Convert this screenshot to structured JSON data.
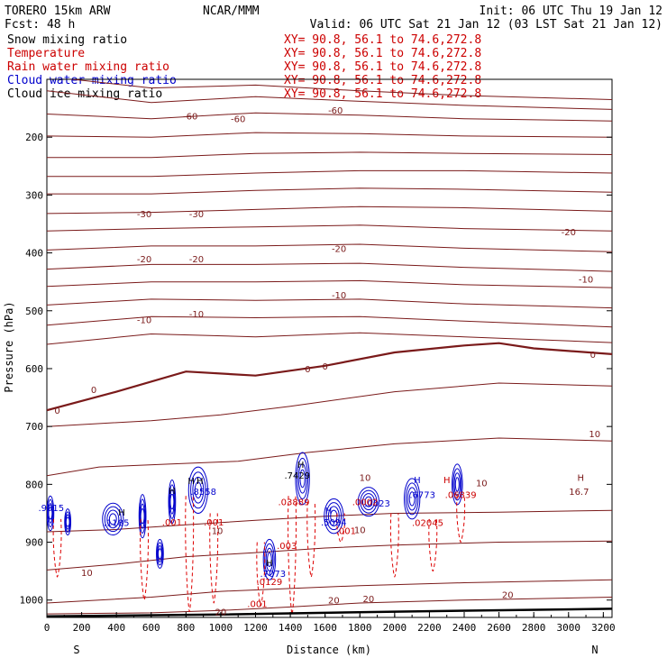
{
  "header": {
    "model": "TORERO  15km ARW",
    "center": "NCAR/MMM",
    "init": "Init: 06 UTC Thu 19 Jan 12",
    "fcst": "Fcst:   48 h",
    "valid": "Valid: 06 UTC Sat 21 Jan 12 (03 LST Sat 21 Jan 12)"
  },
  "fields": [
    {
      "name": "Snow mixing ratio",
      "color": "#000000",
      "xy": "XY=  90.8, 56.1 to  74.6,272.8"
    },
    {
      "name": "Temperature",
      "color": "#cc0000",
      "xy": "XY=  90.8, 56.1 to  74.6,272.8"
    },
    {
      "name": "Rain water mixing ratio",
      "color": "#cc0000",
      "xy": "XY=  90.8, 56.1 to  74.6,272.8"
    },
    {
      "name": "Cloud water mixing ratio",
      "color": "#0000cc",
      "xy": "XY=  90.8, 56.1 to  74.6,272.8"
    },
    {
      "name": "Cloud ice mixing ratio",
      "color": "#000000",
      "xy": "XY=  90.8, 56.1 to  74.6,272.8"
    }
  ],
  "chart_data": {
    "type": "cross-section contour",
    "xlabel": "Distance (km)",
    "ylabel": "Pressure (hPa)",
    "xlim": [
      0,
      3250
    ],
    "ylim": [
      1030,
      100
    ],
    "x_ticks": [
      0,
      200,
      400,
      600,
      800,
      1000,
      1200,
      1400,
      1600,
      1800,
      2000,
      2200,
      2400,
      2600,
      2800,
      3000,
      3200
    ],
    "y_ticks": [
      200,
      300,
      400,
      500,
      600,
      700,
      800,
      900,
      1000
    ],
    "left_end": "S",
    "right_end": "N",
    "colors": {
      "temperature": "#7a1a1a",
      "rain": "#dd0000",
      "cloud": "#0000cc",
      "snow": "#000000",
      "ground": "#000000"
    },
    "isotherms": [
      {
        "label": "-60",
        "points": [
          [
            0,
            95
          ],
          [
            600,
            115
          ],
          [
            1200,
            110
          ],
          [
            1800,
            120
          ],
          [
            2400,
            128
          ],
          [
            3250,
            135
          ]
        ]
      },
      {
        "label": "",
        "points": [
          [
            0,
            120
          ],
          [
            600,
            140
          ],
          [
            1200,
            130
          ],
          [
            1800,
            138
          ],
          [
            2400,
            145
          ],
          [
            3250,
            152
          ]
        ]
      },
      {
        "label": "-60",
        "points": [
          [
            0,
            160
          ],
          [
            600,
            168
          ],
          [
            1200,
            158
          ],
          [
            1800,
            162
          ],
          [
            2400,
            168
          ],
          [
            3250,
            172
          ]
        ]
      },
      {
        "label": "",
        "points": [
          [
            0,
            198
          ],
          [
            600,
            200
          ],
          [
            1200,
            192
          ],
          [
            1800,
            194
          ],
          [
            2400,
            198
          ],
          [
            3250,
            200
          ]
        ]
      },
      {
        "label": "",
        "points": [
          [
            0,
            235
          ],
          [
            600,
            235
          ],
          [
            1200,
            228
          ],
          [
            1800,
            226
          ],
          [
            2400,
            228
          ],
          [
            3250,
            230
          ]
        ]
      },
      {
        "label": "",
        "points": [
          [
            0,
            268
          ],
          [
            600,
            268
          ],
          [
            1200,
            262
          ],
          [
            1800,
            258
          ],
          [
            2400,
            258
          ],
          [
            3250,
            262
          ]
        ]
      },
      {
        "label": "",
        "points": [
          [
            0,
            298
          ],
          [
            600,
            298
          ],
          [
            1200,
            292
          ],
          [
            1800,
            288
          ],
          [
            2400,
            290
          ],
          [
            3250,
            295
          ]
        ]
      },
      {
        "label": "-30",
        "points": [
          [
            0,
            332
          ],
          [
            600,
            330
          ],
          [
            1200,
            325
          ],
          [
            1800,
            320
          ],
          [
            2400,
            322
          ],
          [
            3250,
            328
          ]
        ]
      },
      {
        "label": "",
        "points": [
          [
            0,
            362
          ],
          [
            600,
            358
          ],
          [
            1200,
            355
          ],
          [
            1800,
            352
          ],
          [
            2400,
            358
          ],
          [
            3250,
            362
          ]
        ]
      },
      {
        "label": "-20",
        "points": [
          [
            0,
            395
          ],
          [
            600,
            388
          ],
          [
            1200,
            388
          ],
          [
            1800,
            385
          ],
          [
            2400,
            392
          ],
          [
            3250,
            398
          ]
        ]
      },
      {
        "label": "-20",
        "points": [
          [
            0,
            428
          ],
          [
            600,
            420
          ],
          [
            1200,
            420
          ],
          [
            1800,
            418
          ],
          [
            2400,
            425
          ],
          [
            3250,
            432
          ]
        ]
      },
      {
        "label": "",
        "points": [
          [
            0,
            458
          ],
          [
            600,
            450
          ],
          [
            1200,
            450
          ],
          [
            1800,
            448
          ],
          [
            2400,
            455
          ],
          [
            3250,
            460
          ]
        ]
      },
      {
        "label": "-10",
        "points": [
          [
            0,
            490
          ],
          [
            600,
            480
          ],
          [
            1200,
            482
          ],
          [
            1800,
            480
          ],
          [
            2400,
            488
          ],
          [
            3250,
            495
          ]
        ]
      },
      {
        "label": "-10",
        "points": [
          [
            0,
            525
          ],
          [
            600,
            510
          ],
          [
            1200,
            512
          ],
          [
            1800,
            510
          ],
          [
            2400,
            518
          ],
          [
            3250,
            528
          ]
        ]
      },
      {
        "label": "",
        "points": [
          [
            0,
            558
          ],
          [
            600,
            540
          ],
          [
            1200,
            545
          ],
          [
            1800,
            538
          ],
          [
            2400,
            545
          ],
          [
            3250,
            555
          ]
        ]
      },
      {
        "label": "0",
        "bold": true,
        "points": [
          [
            0,
            672
          ],
          [
            400,
            640
          ],
          [
            800,
            605
          ],
          [
            1200,
            612
          ],
          [
            1600,
            595
          ],
          [
            2000,
            572
          ],
          [
            2400,
            560
          ],
          [
            2600,
            556
          ],
          [
            2800,
            565
          ],
          [
            3250,
            575
          ]
        ]
      },
      {
        "label": "",
        "points": [
          [
            0,
            700
          ],
          [
            600,
            690
          ],
          [
            1000,
            680
          ],
          [
            1400,
            665
          ],
          [
            2000,
            640
          ],
          [
            2600,
            625
          ],
          [
            3250,
            630
          ]
        ]
      },
      {
        "label": "10",
        "points": [
          [
            0,
            785
          ],
          [
            300,
            770
          ],
          [
            700,
            765
          ],
          [
            1100,
            760
          ],
          [
            1500,
            745
          ],
          [
            2000,
            730
          ],
          [
            2600,
            720
          ],
          [
            3250,
            725
          ]
        ]
      },
      {
        "label": "10",
        "points": [
          [
            0,
            882
          ],
          [
            400,
            878
          ],
          [
            800,
            870
          ],
          [
            1200,
            862
          ],
          [
            1600,
            855
          ],
          [
            2000,
            850
          ],
          [
            2600,
            848
          ],
          [
            3250,
            845
          ]
        ]
      },
      {
        "label": "10",
        "points": [
          [
            0,
            948
          ],
          [
            400,
            938
          ],
          [
            800,
            925
          ],
          [
            1200,
            918
          ],
          [
            1600,
            910
          ],
          [
            2000,
            905
          ],
          [
            2600,
            900
          ],
          [
            3250,
            898
          ]
        ]
      },
      {
        "label": "20",
        "points": [
          [
            0,
            1005
          ],
          [
            600,
            995
          ],
          [
            1000,
            985
          ],
          [
            1400,
            980
          ],
          [
            1800,
            975
          ],
          [
            2400,
            970
          ],
          [
            3250,
            965
          ]
        ]
      },
      {
        "label": "20",
        "points": [
          [
            0,
            1024
          ],
          [
            600,
            1022
          ],
          [
            1000,
            1018
          ],
          [
            1400,
            1012
          ],
          [
            1800,
            1005
          ],
          [
            2400,
            1000
          ],
          [
            3250,
            995
          ]
        ]
      }
    ],
    "surface": [
      [
        0,
        1028
      ],
      [
        1000,
        1025
      ],
      [
        2000,
        1020
      ],
      [
        3250,
        1015
      ]
    ],
    "cloud_contours": [
      {
        "x": 20,
        "p": 850,
        "w": 40,
        "h": 60
      },
      {
        "x": 120,
        "p": 865,
        "w": 35,
        "h": 45
      },
      {
        "x": 380,
        "p": 860,
        "w": 120,
        "h": 55
      },
      {
        "x": 550,
        "p": 855,
        "w": 40,
        "h": 75
      },
      {
        "x": 650,
        "p": 920,
        "w": 40,
        "h": 50
      },
      {
        "x": 720,
        "p": 830,
        "w": 40,
        "h": 75
      },
      {
        "x": 870,
        "p": 810,
        "w": 110,
        "h": 80
      },
      {
        "x": 1280,
        "p": 930,
        "w": 70,
        "h": 70
      },
      {
        "x": 1470,
        "p": 790,
        "w": 80,
        "h": 90
      },
      {
        "x": 1650,
        "p": 855,
        "w": 110,
        "h": 60
      },
      {
        "x": 1850,
        "p": 830,
        "w": 120,
        "h": 50
      },
      {
        "x": 2100,
        "p": 825,
        "w": 90,
        "h": 70
      },
      {
        "x": 2360,
        "p": 800,
        "w": 60,
        "h": 70
      }
    ],
    "rain_contours": [
      {
        "x": 60,
        "top": 860,
        "bottom": 960
      },
      {
        "x": 560,
        "top": 860,
        "bottom": 1000
      },
      {
        "x": 820,
        "top": 820,
        "bottom": 1020
      },
      {
        "x": 960,
        "top": 850,
        "bottom": 1005
      },
      {
        "x": 1230,
        "top": 900,
        "bottom": 1010
      },
      {
        "x": 1410,
        "top": 820,
        "bottom": 1025
      },
      {
        "x": 1520,
        "top": 830,
        "bottom": 960
      },
      {
        "x": 1690,
        "top": 850,
        "bottom": 900
      },
      {
        "x": 2000,
        "top": 850,
        "bottom": 960
      },
      {
        "x": 2220,
        "top": 860,
        "bottom": 950
      },
      {
        "x": 2380,
        "top": 820,
        "bottom": 900
      }
    ],
    "annotations": [
      {
        "text": "-60",
        "x": 825,
        "p": 163,
        "color": "#7a1a1a"
      },
      {
        "text": "-60",
        "x": 1100,
        "p": 168,
        "color": "#7a1a1a"
      },
      {
        "text": "-60",
        "x": 1660,
        "p": 153,
        "color": "#7a1a1a"
      },
      {
        "text": "-30",
        "x": 560,
        "p": 332,
        "color": "#7a1a1a"
      },
      {
        "text": "-30",
        "x": 860,
        "p": 332,
        "color": "#7a1a1a"
      },
      {
        "text": "-20",
        "x": 3000,
        "p": 363,
        "color": "#7a1a1a"
      },
      {
        "text": "-20",
        "x": 560,
        "p": 410,
        "color": "#7a1a1a"
      },
      {
        "text": "-20",
        "x": 860,
        "p": 410,
        "color": "#7a1a1a"
      },
      {
        "text": "-20",
        "x": 1680,
        "p": 392,
        "color": "#7a1a1a"
      },
      {
        "text": "-10",
        "x": 3100,
        "p": 445,
        "color": "#7a1a1a"
      },
      {
        "text": "-10",
        "x": 1680,
        "p": 472,
        "color": "#7a1a1a"
      },
      {
        "text": "-10",
        "x": 860,
        "p": 505,
        "color": "#7a1a1a"
      },
      {
        "text": "-10",
        "x": 560,
        "p": 515,
        "color": "#7a1a1a"
      },
      {
        "text": "0",
        "x": 3140,
        "p": 575,
        "color": "#7a1a1a"
      },
      {
        "text": "0",
        "x": 1600,
        "p": 595,
        "color": "#7a1a1a"
      },
      {
        "text": "0",
        "x": 1500,
        "p": 600,
        "color": "#7a1a1a"
      },
      {
        "text": "0",
        "x": 270,
        "p": 636,
        "color": "#7a1a1a"
      },
      {
        "text": "0",
        "x": 60,
        "p": 672,
        "color": "#7a1a1a"
      },
      {
        "text": "10",
        "x": 3150,
        "p": 712,
        "color": "#7a1a1a"
      },
      {
        "text": "10",
        "x": 1830,
        "p": 788,
        "color": "#7a1a1a"
      },
      {
        "text": "10",
        "x": 2500,
        "p": 797,
        "color": "#7a1a1a"
      },
      {
        "text": "10",
        "x": 980,
        "p": 880,
        "color": "#7a1a1a"
      },
      {
        "text": "10",
        "x": 1800,
        "p": 878,
        "color": "#7a1a1a"
      },
      {
        "text": "10",
        "x": 230,
        "p": 952,
        "color": "#7a1a1a"
      },
      {
        "text": "20",
        "x": 1650,
        "p": 1000,
        "color": "#7a1a1a"
      },
      {
        "text": "20",
        "x": 1850,
        "p": 997,
        "color": "#7a1a1a"
      },
      {
        "text": "20",
        "x": 2650,
        "p": 990,
        "color": "#7a1a1a"
      },
      {
        "text": "20",
        "x": 1000,
        "p": 1020,
        "color": "#7a1a1a"
      },
      {
        "text": "H",
        "x": 3070,
        "p": 788,
        "color": "#7a1a1a"
      },
      {
        "text": "16.7",
        "x": 3060,
        "p": 812,
        "color": "#7a1a1a"
      },
      {
        "text": "H",
        "x": 1460,
        "p": 765,
        "color": "#000000"
      },
      {
        "text": ".7429",
        "x": 1440,
        "p": 784,
        "color": "#000000"
      },
      {
        "text": "H",
        "x": 430,
        "p": 848,
        "color": "#000000"
      },
      {
        "text": "H",
        "x": 720,
        "p": 810,
        "color": "#000000"
      },
      {
        "text": "H",
        "x": 830,
        "p": 793,
        "color": "#000000"
      },
      {
        "text": "H",
        "x": 880,
        "p": 793,
        "color": "#000000"
      },
      {
        "text": "H",
        "x": 1280,
        "p": 935,
        "color": "#000000"
      },
      {
        "text": ".9015",
        "x": 25,
        "p": 840,
        "color": "#0000cc"
      },
      {
        "text": ".1185",
        "x": 400,
        "p": 866,
        "color": "#0000cc"
      },
      {
        "text": ".8558",
        "x": 900,
        "p": 812,
        "color": "#0000cc"
      },
      {
        "text": ".7073",
        "x": 1300,
        "p": 954,
        "color": "#0000cc"
      },
      {
        "text": "H",
        "x": 1620,
        "p": 845,
        "color": "#0000cc"
      },
      {
        "text": ".5094",
        "x": 1650,
        "p": 865,
        "color": "#0000cc"
      },
      {
        "text": ".0023",
        "x": 1900,
        "p": 832,
        "color": "#0000cc"
      },
      {
        "text": "H",
        "x": 2130,
        "p": 792,
        "color": "#0000cc"
      },
      {
        "text": ".6773",
        "x": 2160,
        "p": 817,
        "color": "#0000cc"
      },
      {
        "text": "H",
        "x": 2300,
        "p": 792,
        "color": "#cc0000"
      },
      {
        "text": ".06839",
        "x": 2380,
        "p": 817,
        "color": "#cc0000"
      },
      {
        "text": ".003",
        "x": 1380,
        "p": 905,
        "color": "#cc0000"
      },
      {
        "text": ".03889",
        "x": 1420,
        "p": 830,
        "color": "#cc0000"
      },
      {
        "text": ".0002",
        "x": 1830,
        "p": 830,
        "color": "#cc0000"
      },
      {
        "text": ".02045",
        "x": 2190,
        "p": 866,
        "color": "#cc0000"
      },
      {
        "text": ".001",
        "x": 960,
        "p": 865,
        "color": "#cc0000"
      },
      {
        "text": ".001",
        "x": 720,
        "p": 865,
        "color": "#cc0000"
      },
      {
        "text": ".001",
        "x": 1210,
        "p": 1006,
        "color": "#cc0000"
      },
      {
        "text": ".0129",
        "x": 1280,
        "p": 968,
        "color": "#cc0000"
      },
      {
        "text": ".001",
        "x": 1720,
        "p": 880,
        "color": "#cc0000"
      }
    ]
  }
}
